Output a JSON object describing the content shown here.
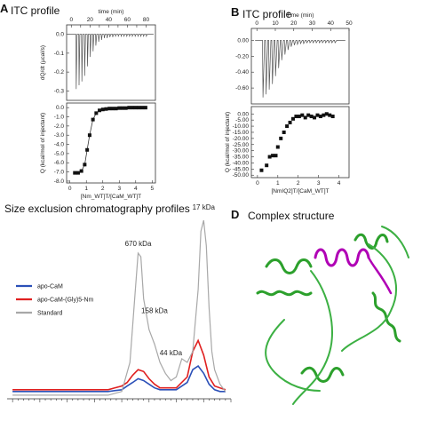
{
  "panels": {
    "A": {
      "letter": "A",
      "title": "ITC profile"
    },
    "B": {
      "letter": "B",
      "title": "ITC profile"
    },
    "C": {
      "title": "Size exclusion chromatography profiles"
    },
    "D": {
      "letter": "D",
      "title": "Complex structure"
    }
  },
  "chart_data": [
    {
      "type": "line",
      "panel": "A-top",
      "xlabel": "time (min)",
      "ylabel": "dQ/dt (µcal/s)",
      "xlim": [
        -5,
        90
      ],
      "ylim": [
        -0.35,
        0.05
      ],
      "xticks": [
        0,
        10,
        20,
        30,
        40,
        50,
        60,
        70,
        80
      ],
      "xtick_labels": [
        "0",
        "20",
        "40",
        "60",
        "80"
      ],
      "yticks": [
        0.0,
        -0.1,
        -0.2,
        -0.3
      ],
      "ytick_labels": [
        "0.0",
        "-0.1",
        "-0.2",
        "-0.3"
      ],
      "injection_times": [
        5,
        8,
        11,
        14,
        17,
        20,
        23,
        26,
        29,
        32,
        35,
        38,
        41,
        44,
        47,
        50,
        53,
        56,
        59,
        62,
        65,
        68,
        71,
        74,
        77,
        80
      ],
      "spike_heights": [
        -0.29,
        -0.27,
        -0.25,
        -0.22,
        -0.17,
        -0.12,
        -0.09,
        -0.06,
        -0.04,
        -0.03,
        -0.02,
        -0.02,
        -0.015,
        -0.015,
        -0.01,
        -0.01,
        -0.01,
        -0.01,
        -0.01,
        -0.01,
        -0.01,
        -0.01,
        -0.01,
        -0.01,
        -0.01,
        -0.01
      ]
    },
    {
      "type": "scatter",
      "panel": "A-bottom",
      "xlabel": "[Nm_WT]T/[CaM_WT]T",
      "ylabel": "Q (kcal/mol of injectant)",
      "xlim": [
        -0.2,
        5.2
      ],
      "ylim": [
        -8.2,
        0.5
      ],
      "xticks": [
        0,
        1,
        2,
        3,
        4,
        5
      ],
      "yticks": [
        0,
        -1,
        -2,
        -3,
        -4,
        -5,
        -6,
        -7,
        -8
      ],
      "ytick_labels": [
        "0.0",
        "-1.0",
        "-2.0",
        "-3.0",
        "-4.0",
        "-5.0",
        "-6.0",
        "-7.0",
        "-8.0"
      ],
      "x": [
        0.3,
        0.5,
        0.7,
        0.9,
        1.05,
        1.2,
        1.4,
        1.6,
        1.8,
        2.0,
        2.2,
        2.4,
        2.6,
        2.8,
        3.0,
        3.2,
        3.4,
        3.6,
        3.8,
        4.0,
        4.2,
        4.4,
        4.6
      ],
      "y": [
        -7.1,
        -7.1,
        -6.9,
        -6.2,
        -4.6,
        -3.0,
        -1.3,
        -0.6,
        -0.3,
        -0.2,
        -0.15,
        -0.1,
        -0.1,
        -0.1,
        -0.05,
        -0.05,
        -0.05,
        0.0,
        0.0,
        0.0,
        0.0,
        0.0,
        0.0
      ]
    },
    {
      "type": "line",
      "panel": "B-top",
      "xlabel": "Time (min)",
      "ylabel": "",
      "xlim": [
        -3,
        50
      ],
      "ylim": [
        -0.8,
        0.15
      ],
      "xticks": [
        0,
        10,
        20,
        30,
        40,
        50
      ],
      "yticks": [
        0.0,
        -0.2,
        -0.4,
        -0.6
      ],
      "ytick_labels": [
        "0.00",
        "-0.20",
        "-0.40",
        "-0.60"
      ],
      "injection_times": [
        3,
        4.7,
        6.4,
        8.1,
        9.8,
        11.5,
        13.2,
        14.9,
        16.6,
        18.3,
        20,
        21.7,
        23.4,
        25.1,
        26.8,
        28.5,
        30.2,
        31.9,
        33.6,
        35.3,
        37,
        38.7,
        40.4,
        42.1
      ],
      "spike_heights": [
        -0.72,
        -0.68,
        -0.62,
        -0.55,
        -0.45,
        -0.35,
        -0.25,
        -0.18,
        -0.12,
        -0.08,
        -0.06,
        -0.05,
        -0.04,
        -0.04,
        -0.03,
        -0.03,
        -0.03,
        -0.03,
        -0.03,
        -0.03,
        -0.03,
        -0.03,
        -0.03,
        -0.03
      ]
    },
    {
      "type": "scatter",
      "panel": "B-bottom",
      "xlabel": "[NmIQ2]T/[CaM_WT]T",
      "ylabel": "Q (kcal/mol of injectant)",
      "xlim": [
        -0.3,
        4.5
      ],
      "ylim": [
        -52,
        6
      ],
      "xticks": [
        0,
        1,
        2,
        3,
        4
      ],
      "yticks": [
        0,
        -5,
        -10,
        -15,
        -20,
        -25,
        -30,
        -35,
        -40,
        -45,
        -50
      ],
      "ytick_labels": [
        "0.00",
        "-5.00",
        "-10.00",
        "-15.00",
        "-20.00",
        "-25.00",
        "-30.00",
        "-35.00",
        "-40.00",
        "-45.00",
        "-50.00"
      ],
      "x": [
        0.2,
        0.45,
        0.6,
        0.75,
        0.9,
        1.0,
        1.15,
        1.3,
        1.45,
        1.6,
        1.75,
        1.9,
        2.05,
        2.2,
        2.35,
        2.5,
        2.65,
        2.8,
        2.95,
        3.1,
        3.25,
        3.4,
        3.55,
        3.7
      ],
      "y": [
        -46,
        -42,
        -35,
        -34,
        -34,
        -27,
        -20,
        -15,
        -10,
        -7,
        -4,
        -2,
        -2,
        -1,
        -3,
        -1,
        -2,
        -3,
        -1,
        -2,
        -1,
        0,
        -1,
        -2
      ]
    },
    {
      "type": "line",
      "panel": "C",
      "title": "Size exclusion chromatography profiles",
      "xlim": [
        -2,
        80
      ],
      "ylim": [
        0,
        100
      ],
      "series": [
        {
          "name": "apo-CaM",
          "color": "#2b50b8",
          "x": [
            0,
            5,
            10,
            15,
            20,
            25,
            30,
            35,
            40,
            42,
            44,
            46,
            48,
            50,
            52,
            54,
            56,
            60,
            64,
            66,
            68,
            70,
            72,
            74,
            76,
            78
          ],
          "y": [
            4,
            4,
            4,
            4,
            4,
            4,
            4,
            4,
            5,
            7,
            9,
            11,
            10,
            8,
            6,
            5,
            5,
            5,
            9,
            16,
            18,
            14,
            8,
            5,
            4,
            4
          ]
        },
        {
          "name": "apo-CaM-(Gly)5-Nm",
          "color": "#e02020",
          "x": [
            0,
            5,
            10,
            15,
            20,
            25,
            30,
            35,
            40,
            42,
            44,
            46,
            48,
            50,
            52,
            54,
            56,
            60,
            64,
            66,
            68,
            70,
            72,
            74,
            76,
            78
          ],
          "y": [
            5,
            5,
            5,
            5,
            5,
            5,
            5,
            5,
            7,
            9,
            13,
            16,
            15,
            11,
            8,
            6,
            6,
            6,
            12,
            26,
            32,
            24,
            12,
            7,
            6,
            5
          ]
        },
        {
          "name": "Standard",
          "color": "#a8a8a8",
          "x": [
            0,
            5,
            10,
            15,
            20,
            25,
            30,
            35,
            40,
            43,
            45,
            46,
            47,
            48,
            50,
            52,
            54,
            56,
            58,
            60,
            62,
            64,
            66,
            68,
            69,
            70,
            71,
            72,
            73,
            74,
            76,
            78
          ],
          "y": [
            2,
            2,
            2,
            2,
            2,
            2,
            2,
            2,
            4,
            20,
            60,
            80,
            78,
            55,
            38,
            30,
            20,
            14,
            10,
            12,
            22,
            20,
            26,
            60,
            92,
            98,
            84,
            50,
            26,
            16,
            8,
            4
          ]
        }
      ],
      "annotations": [
        {
          "text": "670 kDa",
          "x": 46,
          "y": 84
        },
        {
          "text": "158 kDa",
          "x": 52,
          "y": 47
        },
        {
          "text": "44 kDa",
          "x": 58,
          "y": 24
        },
        {
          "text": "17 kDa",
          "x": 70,
          "y": 104
        }
      ],
      "legend": "left"
    }
  ]
}
